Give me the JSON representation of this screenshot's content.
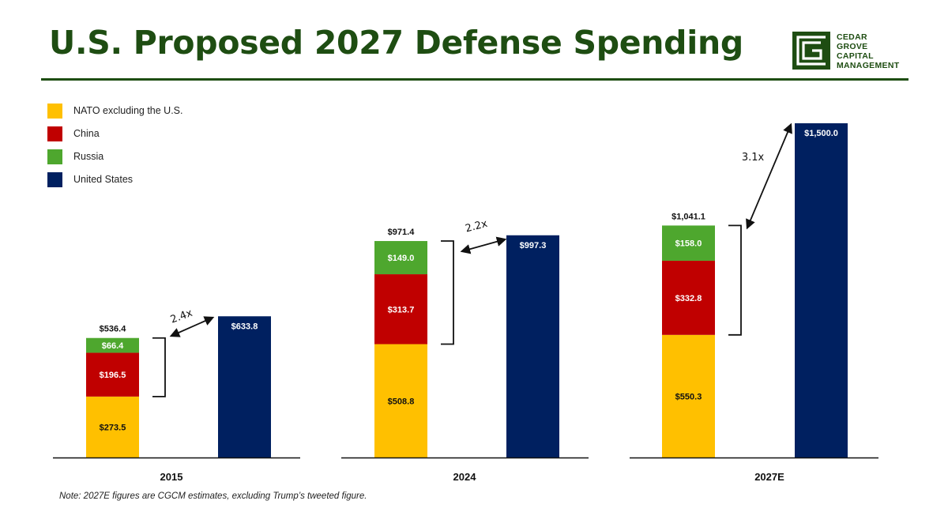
{
  "title": "U.S. Proposed 2027 Defense Spending",
  "logo": {
    "lines": [
      "CEDAR",
      "GROVE",
      "CAPITAL",
      "MANAGEMENT"
    ],
    "color": "#1e4d12"
  },
  "note": "Note: 2027E figures are CGCM estimates, excluding Trump’s tweeted figure.",
  "colors": {
    "nato": "#ffc000",
    "china": "#c00000",
    "russia": "#4ea72e",
    "us": "#002060",
    "title": "#1e4d12"
  },
  "chart_data": {
    "type": "bar",
    "title": "U.S. Proposed 2027 Defense Spending",
    "xlabel": "",
    "ylabel": "",
    "ylim": [
      0,
      1500
    ],
    "grid": false,
    "legend_position": "top-left",
    "categories": [
      "2015",
      "2024",
      "2027E"
    ],
    "stacked_series": [
      {
        "key": "nato",
        "name": "NATO excluding the U.S.",
        "values": [
          273.5,
          508.8,
          550.3
        ],
        "labels": [
          "$273.5",
          "$508.8",
          "$550.3"
        ]
      },
      {
        "key": "china",
        "name": "China",
        "values": [
          196.5,
          313.7,
          332.8
        ],
        "labels": [
          "$196.5",
          "$313.7",
          "$332.8"
        ]
      },
      {
        "key": "russia",
        "name": "Russia",
        "values": [
          66.4,
          149.0,
          158.0
        ],
        "labels": [
          "$66.4",
          "$149.0",
          "$158.0"
        ]
      }
    ],
    "stack_totals": [
      536.4,
      971.4,
      1041.1
    ],
    "stack_total_labels": [
      "$536.4",
      "$971.4",
      "$1,041.1"
    ],
    "us_series": {
      "key": "us",
      "name": "United States",
      "values": [
        633.8,
        997.3,
        1500.0
      ],
      "labels": [
        "$633.8",
        "$997.3",
        "$1,500.0"
      ]
    },
    "ratios": [
      2.4,
      2.2,
      3.1
    ],
    "ratio_labels": [
      "2.4x",
      "2.2x",
      "3.1x"
    ]
  }
}
